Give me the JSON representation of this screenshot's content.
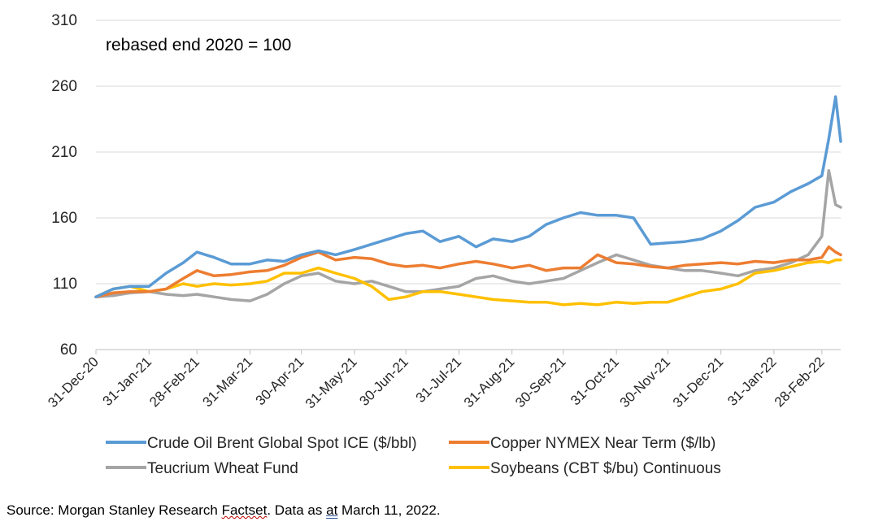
{
  "chart_data": {
    "type": "line",
    "title": "",
    "annotation": "rebased end 2020 = 100",
    "ylim": [
      60,
      310
    ],
    "yticks": [
      60,
      110,
      160,
      210,
      260,
      310
    ],
    "grid": "horizontal",
    "legend_position": "bottom",
    "xticks": [
      "31-Dec-20",
      "31-Jan-21",
      "28-Feb-21",
      "31-Mar-21",
      "30-Apr-21",
      "31-May-21",
      "30-Jun-21",
      "31-Jul-21",
      "31-Aug-21",
      "30-Sep-21",
      "31-Oct-21",
      "30-Nov-21",
      "31-Dec-21",
      "31-Jan-22",
      "28-Feb-22"
    ],
    "series": [
      {
        "name": "Crude Oil Brent Global Spot ICE ($/bbl)",
        "color": "#5b9bd5",
        "x": [
          "31-Dec-20",
          "10-Jan-21",
          "20-Jan-21",
          "31-Jan-21",
          "10-Feb-21",
          "20-Feb-21",
          "28-Feb-21",
          "10-Mar-21",
          "20-Mar-21",
          "31-Mar-21",
          "10-Apr-21",
          "20-Apr-21",
          "30-Apr-21",
          "10-May-21",
          "20-May-21",
          "31-May-21",
          "10-Jun-21",
          "20-Jun-21",
          "30-Jun-21",
          "10-Jul-21",
          "20-Jul-21",
          "31-Jul-21",
          "10-Aug-21",
          "20-Aug-21",
          "31-Aug-21",
          "10-Sep-21",
          "20-Sep-21",
          "30-Sep-21",
          "10-Oct-21",
          "20-Oct-21",
          "31-Oct-21",
          "10-Nov-21",
          "20-Nov-21",
          "30-Nov-21",
          "10-Dec-21",
          "20-Dec-21",
          "31-Dec-21",
          "10-Jan-22",
          "20-Jan-22",
          "31-Jan-22",
          "10-Feb-22",
          "20-Feb-22",
          "28-Feb-22",
          "04-Mar-22",
          "08-Mar-22",
          "11-Mar-22"
        ],
        "values": [
          100,
          106,
          108,
          108,
          118,
          126,
          134,
          130,
          125,
          125,
          128,
          127,
          132,
          135,
          132,
          136,
          140,
          144,
          148,
          150,
          142,
          146,
          138,
          144,
          142,
          146,
          155,
          160,
          164,
          162,
          162,
          160,
          140,
          141,
          142,
          144,
          150,
          158,
          168,
          172,
          180,
          186,
          192,
          220,
          252,
          218
        ]
      },
      {
        "name": "Copper NYMEX Near Term ($/lb)",
        "color": "#ed7d31",
        "x": [
          "31-Dec-20",
          "10-Jan-21",
          "20-Jan-21",
          "31-Jan-21",
          "10-Feb-21",
          "20-Feb-21",
          "28-Feb-21",
          "10-Mar-21",
          "20-Mar-21",
          "31-Mar-21",
          "10-Apr-21",
          "20-Apr-21",
          "30-Apr-21",
          "10-May-21",
          "20-May-21",
          "31-May-21",
          "10-Jun-21",
          "20-Jun-21",
          "30-Jun-21",
          "10-Jul-21",
          "20-Jul-21",
          "31-Jul-21",
          "10-Aug-21",
          "20-Aug-21",
          "31-Aug-21",
          "10-Sep-21",
          "20-Sep-21",
          "30-Sep-21",
          "10-Oct-21",
          "20-Oct-21",
          "31-Oct-21",
          "10-Nov-21",
          "20-Nov-21",
          "30-Nov-21",
          "10-Dec-21",
          "20-Dec-21",
          "31-Dec-21",
          "10-Jan-22",
          "20-Jan-22",
          "31-Jan-22",
          "10-Feb-22",
          "20-Feb-22",
          "28-Feb-22",
          "04-Mar-22",
          "08-Mar-22",
          "11-Mar-22"
        ],
        "values": [
          100,
          103,
          104,
          104,
          106,
          114,
          120,
          116,
          117,
          119,
          120,
          124,
          130,
          134,
          128,
          130,
          129,
          125,
          123,
          124,
          122,
          125,
          127,
          125,
          122,
          124,
          120,
          122,
          122,
          132,
          126,
          125,
          123,
          122,
          124,
          125,
          126,
          125,
          127,
          126,
          128,
          128,
          130,
          138,
          134,
          132
        ]
      },
      {
        "name": "Teucrium Wheat Fund",
        "color": "#a5a5a5",
        "x": [
          "31-Dec-20",
          "10-Jan-21",
          "20-Jan-21",
          "31-Jan-21",
          "10-Feb-21",
          "20-Feb-21",
          "28-Feb-21",
          "10-Mar-21",
          "20-Mar-21",
          "31-Mar-21",
          "10-Apr-21",
          "20-Apr-21",
          "30-Apr-21",
          "10-May-21",
          "20-May-21",
          "31-May-21",
          "10-Jun-21",
          "20-Jun-21",
          "30-Jun-21",
          "10-Jul-21",
          "20-Jul-21",
          "31-Jul-21",
          "10-Aug-21",
          "20-Aug-21",
          "31-Aug-21",
          "10-Sep-21",
          "20-Sep-21",
          "30-Sep-21",
          "10-Oct-21",
          "20-Oct-21",
          "31-Oct-21",
          "10-Nov-21",
          "20-Nov-21",
          "30-Nov-21",
          "10-Dec-21",
          "20-Dec-21",
          "31-Dec-21",
          "10-Jan-22",
          "20-Jan-22",
          "31-Jan-22",
          "10-Feb-22",
          "20-Feb-22",
          "28-Feb-22",
          "04-Mar-22",
          "08-Mar-22",
          "11-Mar-22"
        ],
        "values": [
          100,
          101,
          103,
          104,
          102,
          101,
          102,
          100,
          98,
          97,
          102,
          110,
          116,
          118,
          112,
          110,
          112,
          108,
          104,
          104,
          106,
          108,
          114,
          116,
          112,
          110,
          112,
          114,
          120,
          126,
          132,
          128,
          124,
          122,
          120,
          120,
          118,
          116,
          120,
          122,
          126,
          132,
          146,
          196,
          170,
          168
        ]
      },
      {
        "name": "Soybeans (CBT $/bu) Continuous",
        "color": "#ffc000",
        "x": [
          "31-Dec-20",
          "10-Jan-21",
          "20-Jan-21",
          "31-Jan-21",
          "10-Feb-21",
          "20-Feb-21",
          "28-Feb-21",
          "10-Mar-21",
          "20-Mar-21",
          "31-Mar-21",
          "10-Apr-21",
          "20-Apr-21",
          "30-Apr-21",
          "10-May-21",
          "20-May-21",
          "31-May-21",
          "10-Jun-21",
          "20-Jun-21",
          "30-Jun-21",
          "10-Jul-21",
          "20-Jul-21",
          "31-Jul-21",
          "10-Aug-21",
          "20-Aug-21",
          "31-Aug-21",
          "10-Sep-21",
          "20-Sep-21",
          "30-Sep-21",
          "10-Oct-21",
          "20-Oct-21",
          "31-Oct-21",
          "10-Nov-21",
          "20-Nov-21",
          "30-Nov-21",
          "10-Dec-21",
          "20-Dec-21",
          "31-Dec-21",
          "10-Jan-22",
          "20-Jan-22",
          "31-Jan-22",
          "10-Feb-22",
          "20-Feb-22",
          "28-Feb-22",
          "04-Mar-22",
          "08-Mar-22",
          "11-Mar-22"
        ],
        "values": [
          100,
          106,
          108,
          104,
          106,
          110,
          108,
          110,
          109,
          110,
          112,
          118,
          118,
          122,
          118,
          114,
          108,
          98,
          100,
          104,
          104,
          102,
          100,
          98,
          97,
          96,
          96,
          94,
          95,
          94,
          96,
          95,
          96,
          96,
          100,
          104,
          106,
          110,
          118,
          120,
          123,
          126,
          127,
          126,
          128,
          128
        ]
      }
    ]
  },
  "source": {
    "prefix": "Source: Morgan Stanley Research ",
    "factset": "Factset",
    "middle": ". Data as ",
    "at": "at",
    "suffix": " March 11, 2022."
  }
}
